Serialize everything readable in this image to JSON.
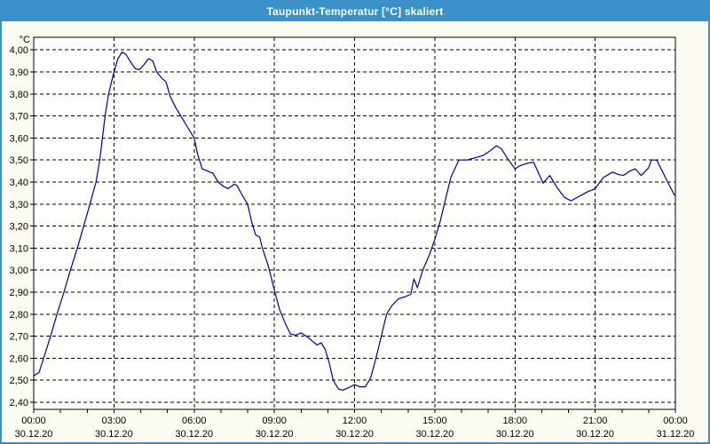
{
  "window": {
    "title": "Taupunkt-Temperatur [°C] skaliert"
  },
  "colors": {
    "titlebar": "#3a90c8",
    "window_border": "#3a90c8",
    "background": "#fbfbf2",
    "plot_background": "#fffffe",
    "grid": "#000000",
    "axis": "#000000",
    "curve": "#0000a0",
    "label_text": "#000000"
  },
  "chart_data": {
    "type": "line",
    "title": "Taupunkt-Temperatur [°C] skaliert",
    "unit_label": "°C",
    "grid": "dashed",
    "legend": "none",
    "ylim": [
      2.4,
      4.0
    ],
    "xlim_hours": [
      0,
      24
    ],
    "yticks": [
      {
        "value": 4.0,
        "label": "4,00"
      },
      {
        "value": 3.9,
        "label": "3,90"
      },
      {
        "value": 3.8,
        "label": "3,80"
      },
      {
        "value": 3.7,
        "label": "3,70"
      },
      {
        "value": 3.6,
        "label": "3,60"
      },
      {
        "value": 3.5,
        "label": "3,50"
      },
      {
        "value": 3.4,
        "label": "3,40"
      },
      {
        "value": 3.3,
        "label": "3,30"
      },
      {
        "value": 3.2,
        "label": "3,20"
      },
      {
        "value": 3.1,
        "label": "3,10"
      },
      {
        "value": 3.0,
        "label": "3,00"
      },
      {
        "value": 2.9,
        "label": "2,90"
      },
      {
        "value": 2.8,
        "label": "2,80"
      },
      {
        "value": 2.7,
        "label": "2,70"
      },
      {
        "value": 2.6,
        "label": "2,60"
      },
      {
        "value": 2.5,
        "label": "2,50"
      },
      {
        "value": 2.4,
        "label": "2,40"
      }
    ],
    "xticks": [
      {
        "hour": 0,
        "time": "00:00",
        "date": "30.12.20"
      },
      {
        "hour": 3,
        "time": "03:00",
        "date": "30.12.20"
      },
      {
        "hour": 6,
        "time": "06:00",
        "date": "30.12.20"
      },
      {
        "hour": 9,
        "time": "09:00",
        "date": "30.12.20"
      },
      {
        "hour": 12,
        "time": "12:00",
        "date": "30.12.20"
      },
      {
        "hour": 15,
        "time": "15:00",
        "date": "30.12.20"
      },
      {
        "hour": 18,
        "time": "18:00",
        "date": "30.12.20"
      },
      {
        "hour": 21,
        "time": "21:00",
        "date": "30.12.20"
      },
      {
        "hour": 24,
        "time": "00:00",
        "date": "31.12.20"
      }
    ],
    "minor_xtick_every_hours": 1,
    "series": [
      {
        "name": "Taupunkt-Temperatur",
        "color": "#0000a0",
        "points": [
          [
            0.0,
            2.52
          ],
          [
            0.2,
            2.535
          ],
          [
            0.37,
            2.6
          ],
          [
            0.63,
            2.7
          ],
          [
            0.87,
            2.8
          ],
          [
            1.13,
            2.9
          ],
          [
            1.37,
            3.0
          ],
          [
            1.63,
            3.1
          ],
          [
            1.87,
            3.2
          ],
          [
            2.1,
            3.3
          ],
          [
            2.33,
            3.4
          ],
          [
            2.47,
            3.5
          ],
          [
            2.57,
            3.6
          ],
          [
            2.67,
            3.7
          ],
          [
            2.8,
            3.8
          ],
          [
            3.0,
            3.9
          ],
          [
            3.15,
            3.96
          ],
          [
            3.3,
            3.99
          ],
          [
            3.45,
            3.98
          ],
          [
            3.6,
            3.95
          ],
          [
            3.8,
            3.915
          ],
          [
            3.95,
            3.91
          ],
          [
            4.1,
            3.93
          ],
          [
            4.3,
            3.96
          ],
          [
            4.45,
            3.95
          ],
          [
            4.6,
            3.9
          ],
          [
            4.8,
            3.87
          ],
          [
            4.95,
            3.855
          ],
          [
            5.1,
            3.79
          ],
          [
            5.3,
            3.74
          ],
          [
            5.5,
            3.7
          ],
          [
            5.75,
            3.65
          ],
          [
            6.0,
            3.6
          ],
          [
            6.12,
            3.53
          ],
          [
            6.3,
            3.46
          ],
          [
            6.5,
            3.45
          ],
          [
            6.7,
            3.44
          ],
          [
            6.9,
            3.4
          ],
          [
            7.1,
            3.38
          ],
          [
            7.27,
            3.37
          ],
          [
            7.5,
            3.39
          ],
          [
            7.6,
            3.385
          ],
          [
            7.8,
            3.34
          ],
          [
            8.0,
            3.3
          ],
          [
            8.15,
            3.22
          ],
          [
            8.3,
            3.16
          ],
          [
            8.45,
            3.15
          ],
          [
            8.55,
            3.1
          ],
          [
            8.77,
            3.02
          ],
          [
            9.0,
            2.91
          ],
          [
            9.2,
            2.82
          ],
          [
            9.4,
            2.76
          ],
          [
            9.6,
            2.71
          ],
          [
            9.8,
            2.705
          ],
          [
            10.0,
            2.715
          ],
          [
            10.2,
            2.7
          ],
          [
            10.4,
            2.68
          ],
          [
            10.6,
            2.66
          ],
          [
            10.75,
            2.67
          ],
          [
            10.9,
            2.64
          ],
          [
            11.05,
            2.58
          ],
          [
            11.2,
            2.5
          ],
          [
            11.4,
            2.46
          ],
          [
            11.55,
            2.455
          ],
          [
            11.75,
            2.465
          ],
          [
            12.0,
            2.48
          ],
          [
            12.2,
            2.47
          ],
          [
            12.4,
            2.47
          ],
          [
            12.6,
            2.51
          ],
          [
            12.8,
            2.6
          ],
          [
            13.0,
            2.7
          ],
          [
            13.2,
            2.8
          ],
          [
            13.4,
            2.84
          ],
          [
            13.65,
            2.87
          ],
          [
            13.9,
            2.88
          ],
          [
            14.1,
            2.89
          ],
          [
            14.22,
            2.96
          ],
          [
            14.35,
            2.92
          ],
          [
            14.55,
            3.0
          ],
          [
            14.8,
            3.07
          ],
          [
            15.0,
            3.14
          ],
          [
            15.2,
            3.22
          ],
          [
            15.4,
            3.32
          ],
          [
            15.6,
            3.42
          ],
          [
            15.9,
            3.5
          ],
          [
            16.2,
            3.5
          ],
          [
            16.5,
            3.51
          ],
          [
            16.8,
            3.52
          ],
          [
            17.05,
            3.54
          ],
          [
            17.3,
            3.565
          ],
          [
            17.5,
            3.55
          ],
          [
            17.7,
            3.51
          ],
          [
            18.0,
            3.46
          ],
          [
            18.2,
            3.475
          ],
          [
            18.45,
            3.485
          ],
          [
            18.7,
            3.49
          ],
          [
            19.05,
            3.395
          ],
          [
            19.3,
            3.43
          ],
          [
            19.6,
            3.37
          ],
          [
            19.85,
            3.33
          ],
          [
            20.1,
            3.315
          ],
          [
            20.4,
            3.335
          ],
          [
            20.7,
            3.355
          ],
          [
            21.0,
            3.37
          ],
          [
            21.3,
            3.42
          ],
          [
            21.65,
            3.445
          ],
          [
            21.85,
            3.435
          ],
          [
            22.05,
            3.43
          ],
          [
            22.3,
            3.45
          ],
          [
            22.5,
            3.46
          ],
          [
            22.72,
            3.43
          ],
          [
            23.0,
            3.465
          ],
          [
            23.1,
            3.5
          ],
          [
            23.3,
            3.5
          ],
          [
            23.55,
            3.44
          ],
          [
            23.75,
            3.39
          ],
          [
            23.97,
            3.34
          ]
        ]
      }
    ]
  }
}
